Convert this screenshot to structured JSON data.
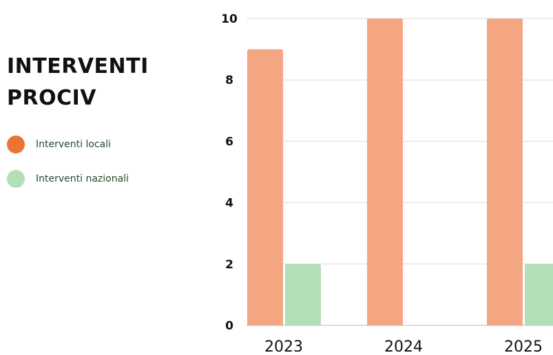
{
  "chart_data": {
    "type": "bar",
    "title_lines": [
      "INTERVENTI",
      "PROCIV"
    ],
    "categories": [
      "2023",
      "2024",
      "2025"
    ],
    "series": [
      {
        "name": "Interventi locali",
        "values": [
          9,
          10,
          10
        ],
        "color": "#f4a582",
        "legend_color": "#e97434"
      },
      {
        "name": "Interventi nazionali",
        "values": [
          2,
          0,
          2
        ],
        "color": "#b2dfb7",
        "legend_color": "#b2dfb7"
      }
    ],
    "ylim": [
      0,
      10
    ],
    "yticks": [
      0,
      2,
      4,
      6,
      8,
      10
    ],
    "grid": true,
    "legend_position": "left"
  }
}
